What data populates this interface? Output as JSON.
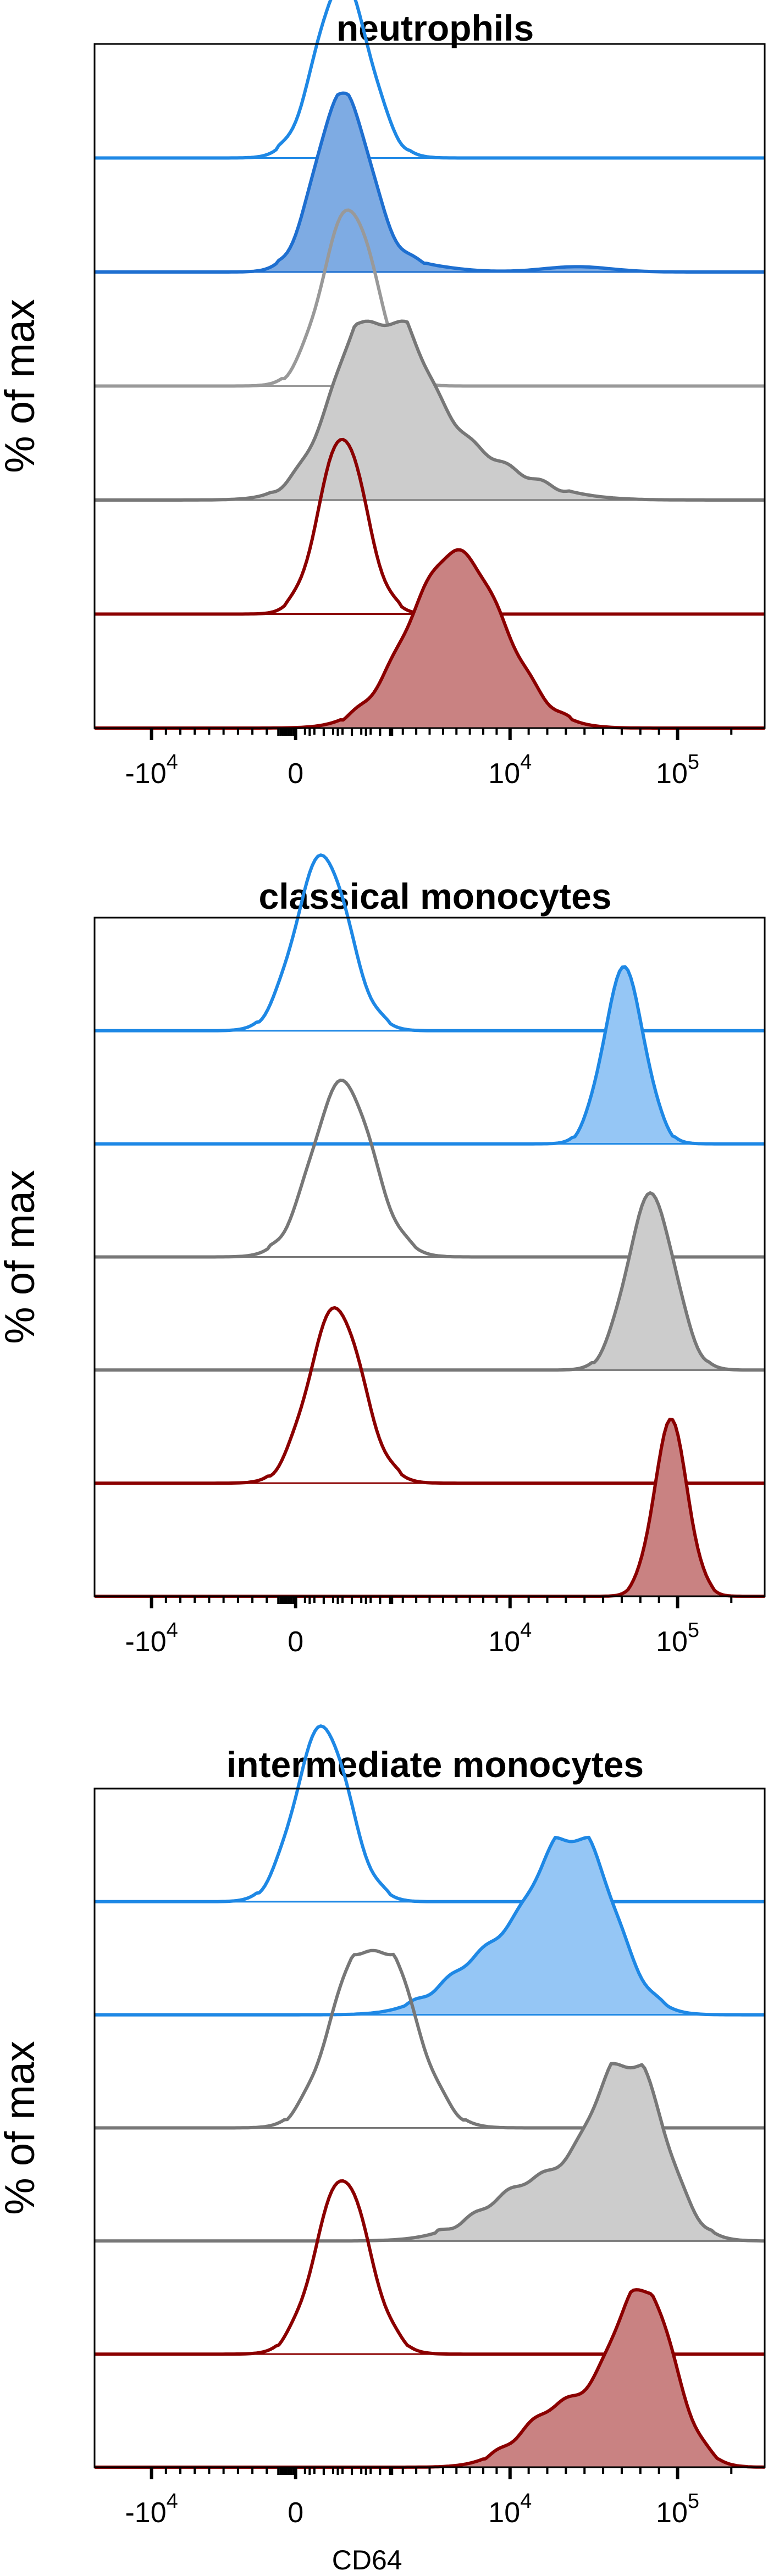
{
  "chart_data": [
    {
      "type": "area",
      "title": "neutrophils",
      "ylabel": "% of max",
      "xlabel": "",
      "x_scale": "biexponential",
      "x_tick_labels": [
        {
          "base": "-10",
          "exp": "4",
          "value": -10000
        },
        {
          "base": "0",
          "exp": "",
          "value": 0
        },
        {
          "base": "10",
          "exp": "4",
          "value": 10000
        },
        {
          "base": "10",
          "exp": "5",
          "value": 100000
        }
      ],
      "series": [
        {
          "style": "outline",
          "color": "#1e88e5",
          "level": 1,
          "peak": 0.37,
          "width": 0.04,
          "shoulders": []
        },
        {
          "style": "filled",
          "color": "#1e6fd0",
          "fill": "#7eabe3",
          "level": 2,
          "peak": 0.37,
          "width": 0.04,
          "shoulders": [
            [
              0.46,
              0.06,
              0.05
            ],
            [
              0.72,
              0.05,
              0.03
            ]
          ]
        },
        {
          "style": "outline",
          "color": "#999999",
          "level": 3,
          "peak": 0.38,
          "width": 0.04,
          "shoulders": []
        },
        {
          "style": "filled",
          "color": "#777777",
          "fill": "#cccccc",
          "level": 4,
          "peak": 0.42,
          "width": 0.06,
          "shoulders": [
            [
              0.52,
              0.1,
              0.3
            ]
          ]
        },
        {
          "style": "outline",
          "color": "#8b0000",
          "level": 5,
          "peak": 0.37,
          "width": 0.035,
          "shoulders": []
        },
        {
          "style": "filled",
          "color": "#8b0000",
          "fill": "#c98282",
          "level": 6,
          "peak": 0.54,
          "width": 0.07,
          "shoulders": []
        }
      ]
    },
    {
      "type": "area",
      "title": "classical monocytes",
      "ylabel": "% of max",
      "xlabel": "",
      "x_scale": "biexponential",
      "x_tick_labels": [
        {
          "base": "-10",
          "exp": "4",
          "value": -10000
        },
        {
          "base": "0",
          "exp": "",
          "value": 0
        },
        {
          "base": "10",
          "exp": "4",
          "value": 10000
        },
        {
          "base": "10",
          "exp": "5",
          "value": 100000
        }
      ],
      "series": [
        {
          "style": "outline",
          "color": "#1e88e5",
          "level": 1,
          "peak": 0.34,
          "width": 0.04,
          "shoulders": []
        },
        {
          "style": "filled",
          "color": "#1e88e5",
          "fill": "#95c6f5",
          "level": 2,
          "peak": 0.79,
          "width": 0.03,
          "shoulders": []
        },
        {
          "style": "outline",
          "color": "#777777",
          "level": 3,
          "peak": 0.37,
          "width": 0.045,
          "shoulders": []
        },
        {
          "style": "filled",
          "color": "#777777",
          "fill": "#cccccc",
          "level": 4,
          "peak": 0.83,
          "width": 0.035,
          "shoulders": []
        },
        {
          "style": "outline",
          "color": "#8b0000",
          "level": 5,
          "peak": 0.36,
          "width": 0.04,
          "shoulders": []
        },
        {
          "style": "filled",
          "color": "#8b0000",
          "fill": "#c98282",
          "level": 6,
          "peak": 0.86,
          "width": 0.025,
          "shoulders": []
        }
      ]
    },
    {
      "type": "area",
      "title": "intermediate monocytes",
      "ylabel": "% of max",
      "xlabel": "CD64",
      "x_scale": "biexponential",
      "x_tick_labels": [
        {
          "base": "-10",
          "exp": "4",
          "value": -10000
        },
        {
          "base": "0",
          "exp": "",
          "value": 0
        },
        {
          "base": "10",
          "exp": "4",
          "value": 10000
        },
        {
          "base": "10",
          "exp": "5",
          "value": 100000
        }
      ],
      "series": [
        {
          "style": "outline",
          "color": "#1e88e5",
          "level": 1,
          "peak": 0.34,
          "width": 0.04,
          "shoulders": []
        },
        {
          "style": "filled",
          "color": "#1e88e5",
          "fill": "#95c6f5",
          "level": 2,
          "peak": 0.72,
          "width": 0.055,
          "shoulders": [
            [
              0.6,
              0.07,
              0.35
            ]
          ]
        },
        {
          "style": "outline",
          "color": "#777777",
          "level": 3,
          "peak": 0.43,
          "width": 0.05,
          "shoulders": [
            [
              0.37,
              0.04,
              0.35
            ]
          ]
        },
        {
          "style": "filled",
          "color": "#777777",
          "fill": "#cccccc",
          "level": 4,
          "peak": 0.8,
          "width": 0.05,
          "shoulders": [
            [
              0.67,
              0.08,
              0.35
            ]
          ]
        },
        {
          "style": "outline",
          "color": "#8b0000",
          "level": 5,
          "peak": 0.37,
          "width": 0.04,
          "shoulders": []
        },
        {
          "style": "filled",
          "color": "#8b0000",
          "fill": "#c98282",
          "level": 6,
          "peak": 0.82,
          "width": 0.045,
          "shoulders": [
            [
              0.7,
              0.06,
              0.35
            ]
          ]
        }
      ]
    }
  ]
}
